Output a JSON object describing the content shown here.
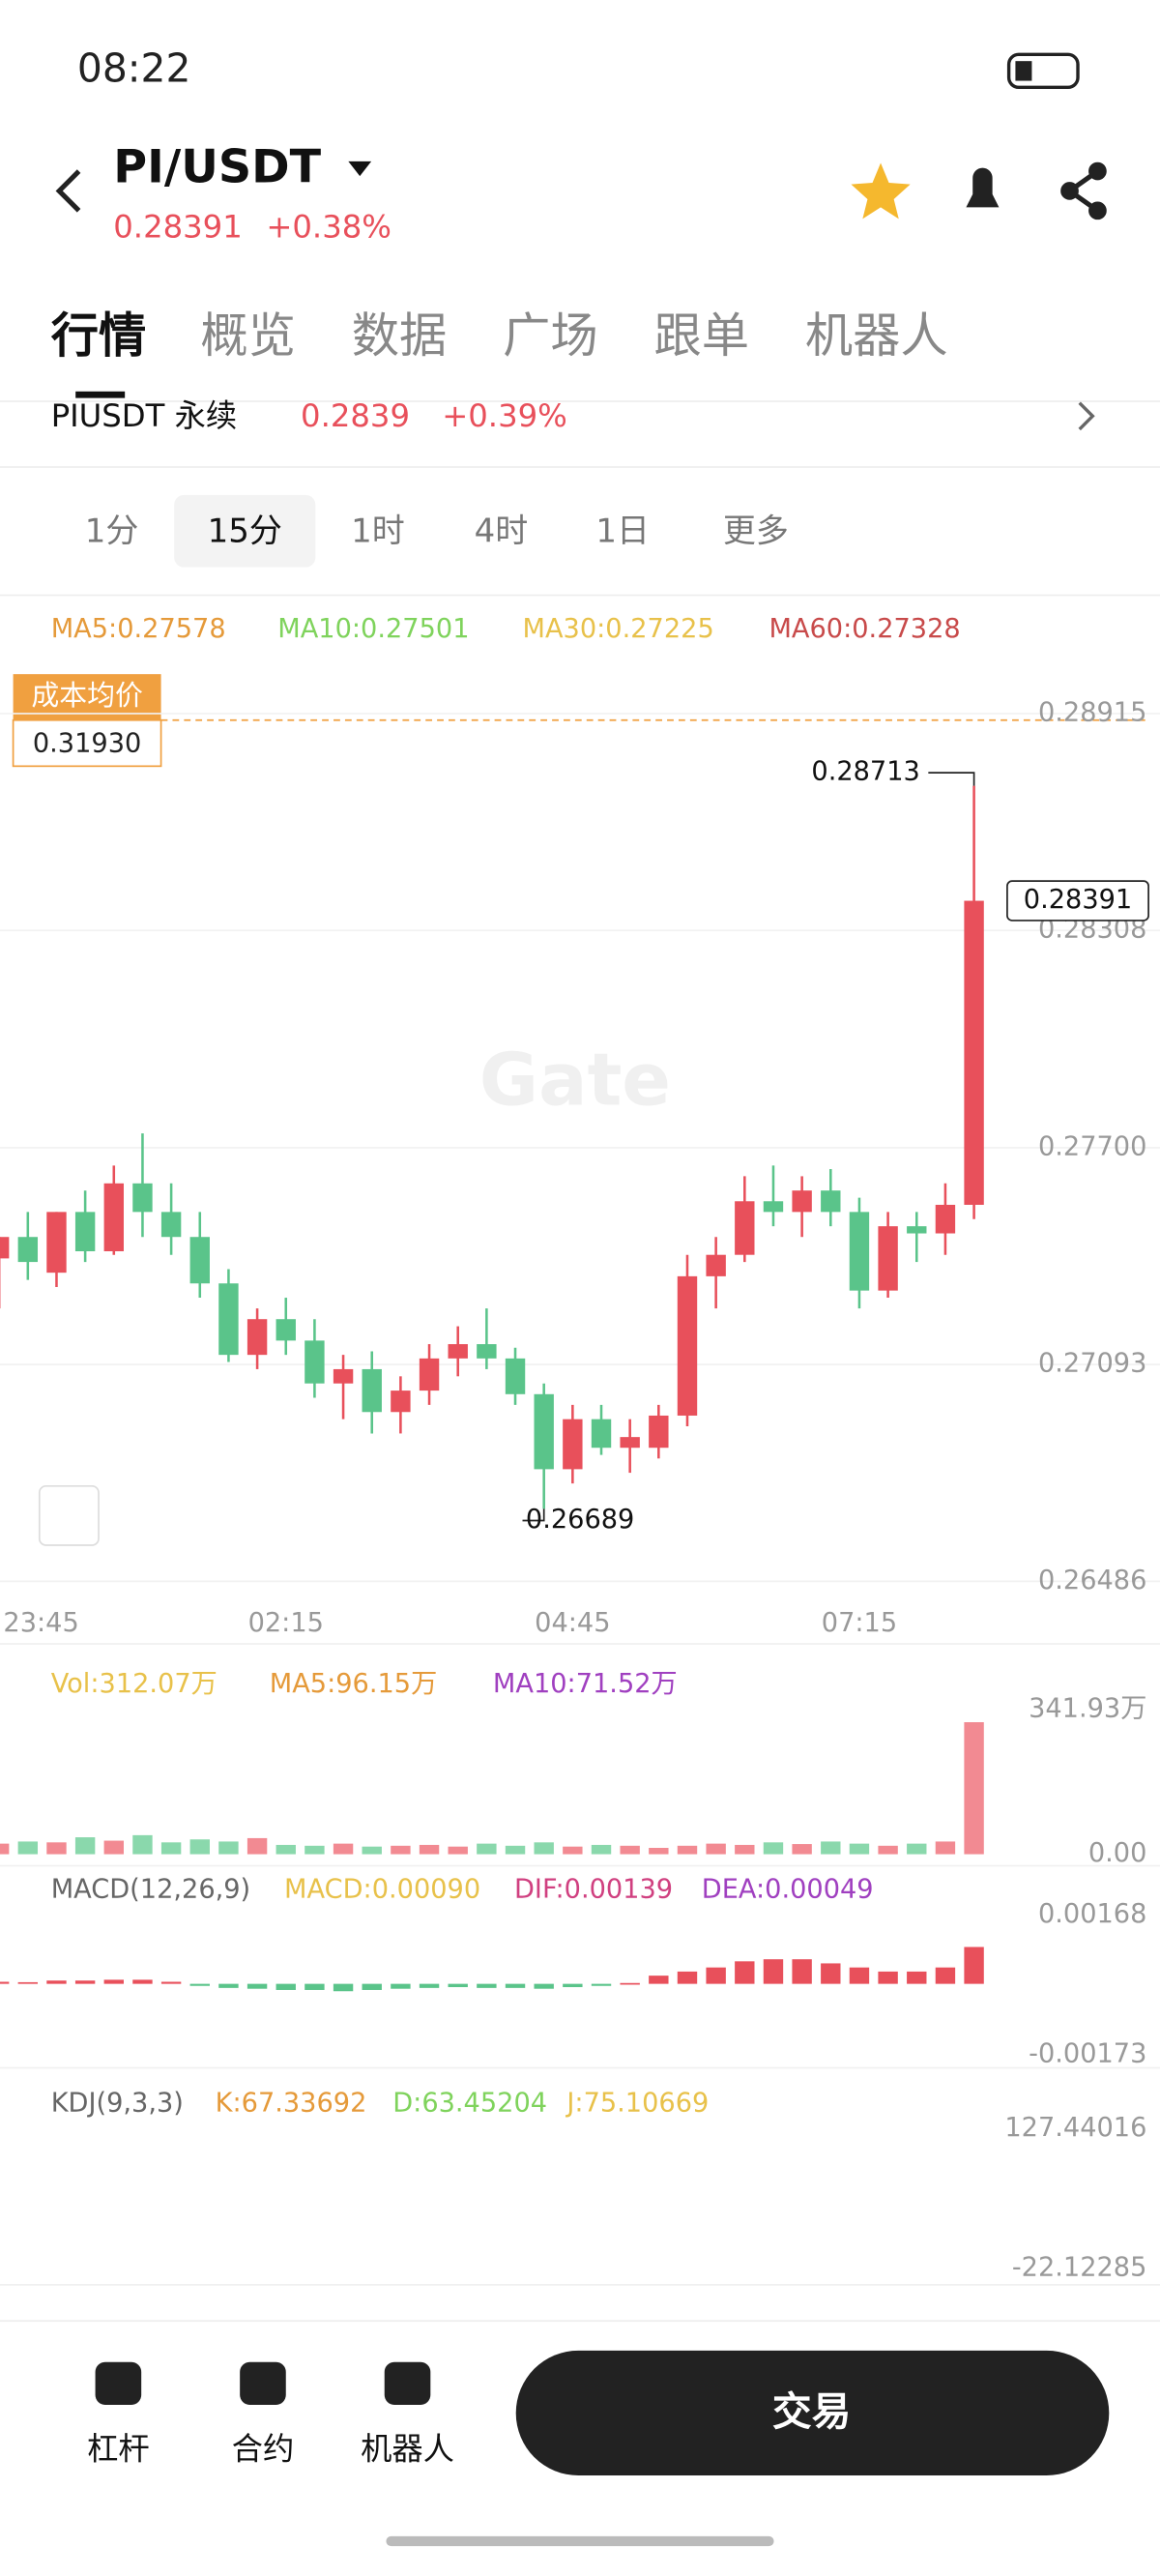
{
  "status": {
    "time": "08:22"
  },
  "header": {
    "pair": "PI/USDT",
    "price": "0.28391",
    "change": "+0.38%"
  },
  "tabs": [
    "行情",
    "概览",
    "数据",
    "广场",
    "跟单",
    "机器人"
  ],
  "perp": {
    "name": "PIUSDT 永续",
    "price": "0.2839",
    "change": "+0.39%"
  },
  "intervals": [
    "1分",
    "15分",
    "1时",
    "4时",
    "1日",
    "更多"
  ],
  "ma_legend": [
    "MA5:0.27578",
    "MA10:0.27501",
    "MA30:0.27225",
    "MA60:0.27328"
  ],
  "cost": {
    "label": "成本均价",
    "value": "0.31930"
  },
  "watermark": "Gate",
  "chart_data": {
    "type": "candlestick",
    "up_color": "#e8505b",
    "down_color": "#5ac48a",
    "ylim": [
      0.26486,
      0.28915
    ],
    "yticks": [
      0.28915,
      0.28308,
      {
        "value": 0.277,
        "label": "0.27700"
      },
      0.27093,
      0.26486
    ],
    "categories": [
      "23:45",
      null,
      null,
      null,
      null,
      null,
      null,
      null,
      null,
      null,
      "02:15",
      null,
      null,
      null,
      null,
      null,
      null,
      null,
      null,
      null,
      "04:45",
      null,
      null,
      null,
      null,
      null,
      null,
      null,
      null,
      null,
      "07:15",
      null,
      null,
      null,
      null
    ],
    "open": [
      0.2739,
      0.2745,
      0.2735,
      0.2752,
      0.2741,
      0.276,
      0.2752,
      0.2745,
      0.2732,
      0.2712,
      0.2722,
      0.2716,
      0.2704,
      0.2708,
      0.2696,
      0.2702,
      0.2711,
      0.2715,
      0.2711,
      0.2701,
      0.268,
      0.2694,
      0.2686,
      0.2686,
      0.2695,
      0.2734,
      0.274,
      0.2755,
      0.2752,
      0.2758,
      0.2752,
      0.273,
      0.2748,
      0.2746,
      0.2754
    ],
    "high": [
      0.2745,
      0.2752,
      0.2752,
      0.2758,
      0.2765,
      0.2774,
      0.276,
      0.2752,
      0.2736,
      0.2725,
      0.2728,
      0.2722,
      0.2712,
      0.2713,
      0.2706,
      0.2715,
      0.272,
      0.2725,
      0.2714,
      0.2704,
      0.2698,
      0.2698,
      0.2694,
      0.2698,
      0.274,
      0.2745,
      0.2762,
      0.2765,
      0.2762,
      0.2764,
      0.2756,
      0.2752,
      0.2752,
      0.276,
      0.28713
    ],
    "low": [
      0.2725,
      0.2733,
      0.2731,
      0.2738,
      0.274,
      0.2745,
      0.274,
      0.2728,
      0.271,
      0.2708,
      0.2712,
      0.27,
      0.2694,
      0.269,
      0.269,
      0.2698,
      0.2706,
      0.2708,
      0.2698,
      0.26689,
      0.2676,
      0.2684,
      0.2679,
      0.2683,
      0.2692,
      0.2725,
      0.2738,
      0.2748,
      0.2745,
      0.2748,
      0.2725,
      0.2728,
      0.2738,
      0.274,
      0.275
    ],
    "close": [
      0.2745,
      0.2738,
      0.2752,
      0.2741,
      0.276,
      0.2752,
      0.2745,
      0.2732,
      0.2712,
      0.2722,
      0.2716,
      0.2704,
      0.2708,
      0.2696,
      0.2702,
      0.2711,
      0.2715,
      0.2711,
      0.2701,
      0.268,
      0.2694,
      0.2686,
      0.2689,
      0.2695,
      0.2734,
      0.274,
      0.2755,
      0.2752,
      0.2758,
      0.2752,
      0.273,
      0.2748,
      0.2746,
      0.2754,
      0.28391
    ],
    "high_label": "0.28713",
    "low_label": "0.26689",
    "last_label": "0.28391",
    "volume": {
      "legend": [
        "Vol:312.07万",
        "MA5:96.15万",
        "MA10:71.52万"
      ],
      "ylim": [
        0,
        341.93
      ],
      "yticks": [
        {
          "value": 341.93,
          "label": "341.93万"
        },
        {
          "value": 0,
          "label": "0.00"
        }
      ],
      "values": [
        25,
        30,
        28,
        40,
        32,
        45,
        28,
        35,
        30,
        38,
        22,
        20,
        25,
        18,
        20,
        22,
        18,
        25,
        20,
        28,
        18,
        22,
        20,
        15,
        20,
        25,
        22,
        28,
        24,
        30,
        25,
        20,
        25,
        30,
        312.07
      ]
    },
    "macd": {
      "legend": [
        "MACD(12,26,9)",
        "MACD:0.00090",
        "DIF:0.00139",
        "DEA:0.00049"
      ],
      "ylim": [
        -0.00173,
        0.00168
      ],
      "yticks": [
        0.00168,
        -0.00173
      ],
      "values": [
        5e-05,
        4e-05,
        8e-05,
        8e-05,
        0.0001,
        0.0001,
        5e-05,
        -5e-05,
        -0.0001,
        -0.00012,
        -0.00015,
        -0.00015,
        -0.00018,
        -0.00015,
        -0.00012,
        -0.0001,
        -8e-05,
        -0.0001,
        -0.0001,
        -0.00012,
        -8e-05,
        -5e-05,
        2e-05,
        0.0002,
        0.0003,
        0.0004,
        0.00055,
        0.0006,
        0.0006,
        0.0005,
        0.0004,
        0.0003,
        0.0003,
        0.0004,
        0.0009
      ]
    },
    "kdj": {
      "legend": [
        "KDJ(9,3,3)",
        "K:67.33692",
        "D:63.45204",
        "J:75.10669"
      ],
      "ylim": [
        -22.12285,
        127.44016
      ],
      "yticks": [
        127.44016,
        -22.12285
      ]
    }
  },
  "nav": [
    "杠杆",
    "合约",
    "机器人"
  ],
  "trade_button": "交易"
}
